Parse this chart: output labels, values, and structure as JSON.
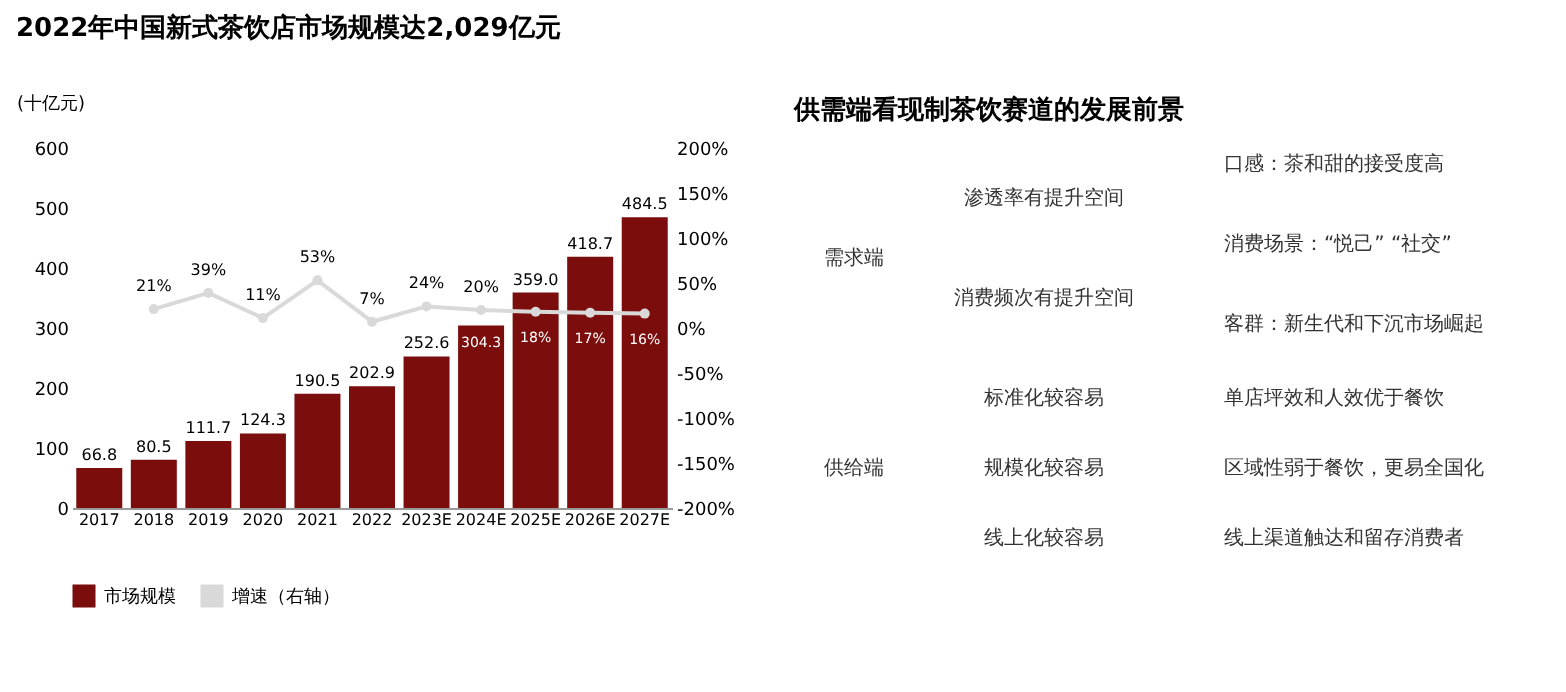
{
  "chart_data": [
    {
      "type": "bar",
      "title": "2022年中国新式茶饮店市场规模达2,029亿元",
      "ylabel": "(十亿元)",
      "categories": [
        "2017",
        "2018",
        "2019",
        "2020",
        "2021",
        "2022",
        "2023E",
        "2024E",
        "2025E",
        "2026E",
        "2027E"
      ],
      "series": [
        {
          "name": "市场规模",
          "type": "bar",
          "color": "#7b0d0d",
          "values": [
            66.8,
            80.5,
            111.7,
            124.3,
            190.5,
            202.9,
            252.6,
            304.3,
            359.0,
            418.7,
            484.5
          ],
          "value_labels": [
            "66.8",
            "80.5",
            "111.7",
            "124.3",
            "190.5",
            "202.9",
            "252.6",
            "304.3",
            "359.0",
            "418.7",
            "484.5"
          ]
        },
        {
          "name": "增速（右轴）",
          "type": "line",
          "axis": "y2",
          "color": "#d9d9d9",
          "marker": "circle",
          "values": [
            null,
            21,
            39,
            11,
            53,
            7,
            24,
            20,
            18,
            17,
            16
          ],
          "value_labels": [
            null,
            "21%",
            "39%",
            "11%",
            "53%",
            "7%",
            "24%",
            "20%",
            "18%",
            "17%",
            "16%"
          ]
        }
      ],
      "ylim": [
        0,
        600
      ],
      "yticks": [
        0,
        100,
        200,
        300,
        400,
        500,
        600
      ],
      "y2lim": [
        -200,
        200
      ],
      "y2ticks": [
        {
          "value": -200,
          "label": "-200%"
        },
        {
          "value": -150,
          "label": "-150%"
        },
        {
          "value": -100,
          "label": "-100%"
        },
        {
          "value": -50,
          "label": "-50%"
        },
        {
          "value": 0,
          "label": "0%"
        },
        {
          "value": 50,
          "label": "50%"
        },
        {
          "value": 100,
          "label": "100%"
        },
        {
          "value": 150,
          "label": "150%"
        },
        {
          "value": 200,
          "label": "200%"
        }
      ],
      "grid": false,
      "legend": "bottom"
    },
    {
      "type": "other",
      "title": "供需端看现制茶饮赛道的发展前景",
      "annotations": [
        "需求端",
        "渗透率有提升空间",
        "消费频次有提升空间",
        "口感：茶和甜的接受度高",
        "消费场景：“悦己” “社交”",
        "客群：新生代和下沉市场崛起",
        "供给端",
        "标准化较容易",
        "规模化较容易",
        "线上化较容易",
        "单店坪效和人效优于餐饮",
        "区域性弱于餐饮，更易全国化",
        "线上渠道触达和留存消费者"
      ]
    }
  ]
}
